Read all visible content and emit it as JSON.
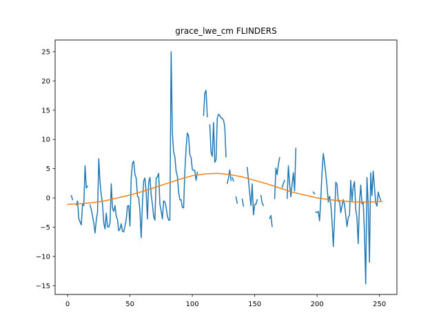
{
  "chart_data": {
    "type": "line",
    "title": "grace_lwe_cm FLINDERS",
    "xlabel": "",
    "ylabel": "",
    "xlim": [
      -10,
      264
    ],
    "ylim": [
      -16.5,
      27
    ],
    "xticks": [
      0,
      50,
      100,
      150,
      200,
      250
    ],
    "yticks": [
      -15,
      -10,
      -5,
      0,
      5,
      10,
      15,
      20,
      25
    ],
    "xtick_labels": [
      "0",
      "50",
      "100",
      "150",
      "200",
      "250"
    ],
    "ytick_labels": [
      "−15",
      "−10",
      "−5",
      "0",
      "5",
      "10",
      "15",
      "20",
      "25"
    ],
    "grid": false,
    "legend": "none",
    "series": [
      {
        "color": "#1f77b4",
        "segments": [
          [
            [
              3,
              0.4
            ],
            [
              4,
              -0.3
            ]
          ],
          [
            [
              7,
              -1.2
            ],
            [
              8,
              -0.5
            ],
            [
              9,
              -3.6
            ],
            [
              10,
              -4.1
            ],
            [
              11,
              -4.6
            ],
            [
              12,
              -1.0
            ],
            [
              13,
              -1.3
            ],
            [
              14,
              5.5
            ],
            [
              15,
              1.7
            ],
            [
              16,
              2.0
            ]
          ],
          [
            [
              18,
              -1.2
            ],
            [
              19,
              -2.0
            ],
            [
              20,
              -3.1
            ],
            [
              21,
              -4.3
            ],
            [
              22,
              -6.0
            ],
            [
              23,
              -3.8
            ],
            [
              24,
              -2.4
            ],
            [
              25,
              6.7
            ],
            [
              26,
              2.7
            ],
            [
              27,
              0.5
            ],
            [
              28,
              -1.0
            ],
            [
              29,
              -4.3
            ],
            [
              30,
              -5.3
            ],
            [
              31,
              -2.6
            ],
            [
              32,
              -4.9
            ],
            [
              33,
              -5.0
            ],
            [
              34,
              -4.3
            ],
            [
              35,
              2.4
            ],
            [
              36,
              -1.8
            ],
            [
              37,
              -2.3
            ],
            [
              38,
              -1.3
            ],
            [
              39,
              -3.1
            ],
            [
              40,
              -3.7
            ],
            [
              41,
              -5.6
            ],
            [
              42,
              -5.3
            ],
            [
              43,
              -4.4
            ],
            [
              44,
              -5.7
            ],
            [
              45,
              -5.8
            ],
            [
              46,
              -4.8
            ],
            [
              47,
              -3.7
            ],
            [
              48,
              -1.4
            ],
            [
              49,
              -1.3
            ],
            [
              50,
              -4.8
            ],
            [
              51,
              3.4
            ],
            [
              52,
              5.9
            ],
            [
              53,
              6.3
            ],
            [
              54,
              4.0
            ],
            [
              55,
              3.4
            ],
            [
              56,
              0.3
            ],
            [
              57,
              0.1
            ],
            [
              58,
              -2.3
            ],
            [
              59,
              -6.8
            ],
            [
              60,
              -0.8
            ],
            [
              61,
              2.9
            ],
            [
              62,
              3.4
            ],
            [
              63,
              1.0
            ],
            [
              64,
              -3.6
            ],
            [
              65,
              2.7
            ],
            [
              66,
              3.5
            ],
            [
              67,
              0.6
            ],
            [
              68,
              -1.1
            ],
            [
              69,
              -3.2
            ],
            [
              70,
              -3.8
            ],
            [
              71,
              3.4
            ],
            [
              72,
              3.6
            ],
            [
              73,
              4.2
            ],
            [
              74,
              -1.1
            ],
            [
              75,
              -2.2
            ],
            [
              76,
              -3.6
            ],
            [
              77,
              -0.5
            ],
            [
              78,
              -0.7
            ],
            [
              79,
              -1.6
            ],
            [
              80,
              -3.1
            ],
            [
              81,
              -3.8
            ],
            [
              82,
              -3.8
            ],
            [
              83,
              25.0
            ],
            [
              84,
              11.1
            ],
            [
              85,
              7.9
            ],
            [
              86,
              7.0
            ],
            [
              87,
              4.6
            ],
            [
              88,
              3.7
            ],
            [
              89,
              1.0
            ],
            [
              90,
              -0.3
            ],
            [
              91,
              -0.3
            ],
            [
              92,
              -1.6
            ],
            [
              93,
              -1.7
            ],
            [
              94,
              4.5
            ],
            [
              95,
              8.5
            ],
            [
              96,
              11.1
            ],
            [
              97,
              10.6
            ],
            [
              98,
              7.4
            ],
            [
              99,
              6.9
            ],
            [
              100,
              4.9
            ],
            [
              101,
              4.7
            ],
            [
              102,
              4.7
            ],
            [
              103,
              3.0
            ],
            [
              104,
              4.4
            ]
          ],
          [
            [
              109,
              14.1
            ],
            [
              110,
              17.9
            ],
            [
              111,
              18.4
            ],
            [
              112,
              13.9
            ]
          ],
          [
            [
              114,
              12.5
            ],
            [
              115,
              7.8
            ],
            [
              116,
              7.1
            ],
            [
              117,
              12.9
            ],
            [
              118,
              6.1
            ],
            [
              119,
              6.5
            ],
            [
              120,
              13.6
            ],
            [
              121,
              14.3
            ],
            [
              122,
              14.1
            ],
            [
              123,
              13.7
            ],
            [
              124,
              13.6
            ],
            [
              125,
              13.3
            ],
            [
              126,
              12.2
            ],
            [
              127,
              7.0
            ]
          ],
          [
            [
              128,
              2.5
            ],
            [
              129,
              3.4
            ],
            [
              130,
              4.8
            ],
            [
              131,
              3.0
            ]
          ],
          [
            [
              132,
              3.5
            ],
            [
              133,
              2.9
            ]
          ],
          [
            [
              135,
              0.2
            ],
            [
              136,
              -0.9
            ]
          ],
          [
            [
              140,
              -0.2
            ],
            [
              141,
              -1.4
            ]
          ],
          [
            [
              144,
              5.2
            ],
            [
              145,
              3.1
            ],
            [
              146,
              0.7
            ],
            [
              147,
              -1.3
            ],
            [
              148,
              2.4
            ],
            [
              149,
              -2.9
            ],
            [
              150,
              -1.1
            ],
            [
              151,
              -1.1
            ],
            [
              152,
              -0.3
            ]
          ],
          [
            [
              155,
              0.4
            ],
            [
              156,
              -0.9
            ],
            [
              157,
              -1.3
            ]
          ],
          [
            [
              162,
              -3.5
            ],
            [
              163,
              -3.0
            ],
            [
              164,
              -4.9
            ]
          ],
          [
            [
              166,
              -0.1
            ],
            [
              167,
              5.1
            ],
            [
              168,
              4.0
            ],
            [
              169,
              5.7
            ],
            [
              170,
              6.9
            ]
          ],
          [
            [
              172,
              1.8
            ],
            [
              173,
              2.5
            ],
            [
              174,
              3.0
            ]
          ],
          [
            [
              176,
              -0.1
            ],
            [
              177,
              5.5
            ],
            [
              178,
              2.4
            ],
            [
              179,
              0.2
            ],
            [
              180,
              2.4
            ],
            [
              181,
              4.3
            ],
            [
              182,
              1.2
            ],
            [
              183,
              8.5
            ]
          ],
          [
            [
              197,
              1.0
            ],
            [
              198,
              0.7
            ]
          ],
          [
            [
              199,
              -2.4
            ],
            [
              200,
              -2.5
            ],
            [
              201,
              -2.3
            ],
            [
              202,
              -3.9
            ],
            [
              203,
              -0.1
            ],
            [
              204,
              4.5
            ],
            [
              205,
              7.6
            ],
            [
              206,
              6.0
            ],
            [
              207,
              4.1
            ],
            [
              208,
              1.9
            ],
            [
              209,
              -0.7
            ],
            [
              210,
              0.3
            ],
            [
              211,
              -1.1
            ],
            [
              212,
              -3.9
            ],
            [
              213,
              -8.3
            ],
            [
              214,
              -3.5
            ],
            [
              215,
              2.7
            ],
            [
              216,
              2.3
            ],
            [
              217,
              -0.6
            ],
            [
              218,
              -0.5
            ],
            [
              219,
              -2.5
            ],
            [
              220,
              -1.4
            ],
            [
              221,
              -0.3
            ],
            [
              222,
              -1.1
            ],
            [
              223,
              -3.0
            ],
            [
              224,
              -4.9
            ],
            [
              225,
              -3.4
            ],
            [
              226,
              -2.9
            ],
            [
              227,
              3.0
            ],
            [
              228,
              -0.6
            ],
            [
              229,
              1.9
            ],
            [
              230,
              2.8
            ],
            [
              231,
              -1.9
            ],
            [
              232,
              -3.4
            ],
            [
              233,
              -7.8
            ],
            [
              234,
              -0.9
            ],
            [
              235,
              2.2
            ],
            [
              236,
              -1.0
            ],
            [
              237,
              -0.8
            ],
            [
              238,
              -5.9
            ],
            [
              239,
              -14.7
            ],
            [
              240,
              3.5
            ],
            [
              241,
              -1.2
            ],
            [
              242,
              -11.0
            ],
            [
              243,
              4.3
            ],
            [
              244,
              0.4
            ],
            [
              245,
              4.6
            ],
            [
              246,
              1.9
            ],
            [
              247,
              -0.8
            ],
            [
              248,
              -1.4
            ],
            [
              249,
              1.0
            ],
            [
              250,
              0.2
            ],
            [
              251,
              -0.4
            ]
          ]
        ]
      },
      {
        "color": "#ff7f0e",
        "points": [
          [
            0,
            -1.1
          ],
          [
            10,
            -1.0
          ],
          [
            20,
            -0.8
          ],
          [
            30,
            -0.5
          ],
          [
            40,
            0.0
          ],
          [
            50,
            0.5
          ],
          [
            60,
            1.1
          ],
          [
            70,
            1.8
          ],
          [
            80,
            2.5
          ],
          [
            90,
            3.2
          ],
          [
            100,
            3.8
          ],
          [
            110,
            4.1
          ],
          [
            120,
            4.2
          ],
          [
            130,
            4.0
          ],
          [
            140,
            3.6
          ],
          [
            150,
            3.0
          ],
          [
            160,
            2.4
          ],
          [
            170,
            1.7
          ],
          [
            180,
            1.0
          ],
          [
            190,
            0.5
          ],
          [
            200,
            0.0
          ],
          [
            210,
            -0.3
          ],
          [
            220,
            -0.5
          ],
          [
            230,
            -0.7
          ],
          [
            240,
            -0.7
          ],
          [
            252,
            -0.6
          ]
        ]
      }
    ]
  }
}
